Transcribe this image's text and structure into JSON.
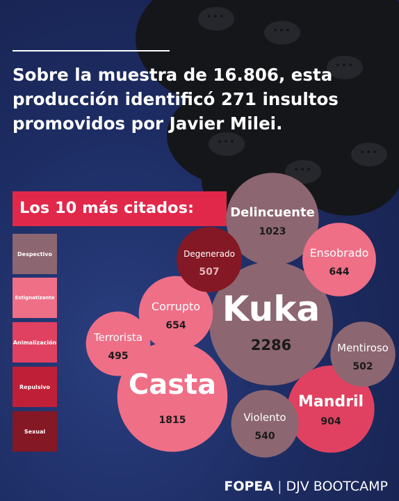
{
  "headline": "Sobre la muestra de 16.806, esta producción identificó 271 insultos promovidos por Javier Milei.",
  "legend_title": "Los 10 más citados:",
  "legend": [
    {
      "label": "Despectivo",
      "color": "#8c6671"
    },
    {
      "label": "Estignatizante",
      "color": "#ef6f87"
    },
    {
      "label": "Animalización",
      "color": "#e14160"
    },
    {
      "label": "Repulsivo",
      "color": "#bf1f37"
    },
    {
      "label": "Sexual",
      "color": "#841824"
    }
  ],
  "footer": {
    "brand": "FOPEA",
    "separator": "|",
    "partner": "DJV BOOTCAMP"
  },
  "chart_data": {
    "type": "bubble",
    "series": [
      {
        "label": "Kuka",
        "value": 2286,
        "category": "Despectivo"
      },
      {
        "label": "Casta",
        "value": 1815,
        "category": "Estignatizante"
      },
      {
        "label": "Delincuente",
        "value": 1023,
        "category": "Despectivo"
      },
      {
        "label": "Mandril",
        "value": 904,
        "category": "Animalización"
      },
      {
        "label": "Corrupto",
        "value": 654,
        "category": "Estignatizante"
      },
      {
        "label": "Ensobrado",
        "value": 644,
        "category": "Estignatizante"
      },
      {
        "label": "Violento",
        "value": 540,
        "category": "Despectivo"
      },
      {
        "label": "Degenerado",
        "value": 507,
        "category": "Sexual"
      },
      {
        "label": "Mentiroso",
        "value": 502,
        "category": "Despectivo"
      },
      {
        "label": "Terrorista",
        "value": 495,
        "category": "Estignatizante"
      }
    ]
  }
}
